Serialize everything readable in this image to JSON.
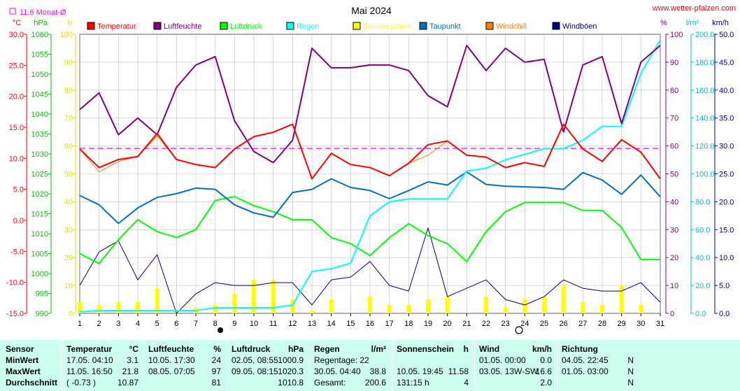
{
  "header": {
    "title": "Mai 2024",
    "website": "www.wetter-pfalzen.com",
    "avg_label": "11.6 Monat-Ø"
  },
  "units": {
    "temp": "°C",
    "press": "hPa",
    "sun": "h",
    "hum": "%",
    "rain": "l/m²",
    "wind": "km/h"
  },
  "legend": [
    {
      "label": "Temperatur",
      "color": "#ff0000"
    },
    {
      "label": "Luftfeuchte",
      "color": "#800080"
    },
    {
      "label": "Luftdruck",
      "color": "#00ff00"
    },
    {
      "label": "Regen",
      "color": "#00ffff"
    },
    {
      "label": "Sonnenschein",
      "color": "#ffff00"
    },
    {
      "label": "Taupunkt",
      "color": "#0070c0"
    },
    {
      "label": "Windchill",
      "color": "#ff8000"
    },
    {
      "label": "Windböen",
      "color": "#000080"
    }
  ],
  "chart_data": {
    "type": "line",
    "title": "Mai 2024",
    "x": [
      1,
      2,
      3,
      4,
      5,
      6,
      7,
      8,
      9,
      10,
      11,
      12,
      13,
      14,
      15,
      16,
      17,
      18,
      19,
      20,
      21,
      22,
      23,
      24,
      25,
      26,
      27,
      28,
      29,
      30,
      31
    ],
    "x_ticks": [
      "1",
      "2",
      "3",
      "4",
      "5",
      "6",
      "7",
      "8",
      "9",
      "10",
      "11",
      "12",
      "13",
      "14",
      "15",
      "16",
      "17",
      "18",
      "19",
      "20",
      "21",
      "22",
      "23",
      "24",
      "25",
      "26",
      "27",
      "28",
      "29",
      "30",
      "31"
    ],
    "axes": {
      "temp": {
        "label": "°C",
        "range": [
          -15,
          30
        ],
        "ticks": [
          "-15.0",
          "-10.0",
          "-5.0",
          "0.0",
          "5.0",
          "10.0",
          "15.0",
          "20.0",
          "25.0",
          "30.0"
        ]
      },
      "pressure": {
        "label": "hPa",
        "range": [
          990,
          1060
        ],
        "ticks": [
          "990",
          "995",
          "1000",
          "1005",
          "1010",
          "1015",
          "1020",
          "1025",
          "1030",
          "1035",
          "1040",
          "1045",
          "1050",
          "1055",
          "1060"
        ]
      },
      "sunshine": {
        "label": "h",
        "range": [
          0,
          100
        ],
        "ticks": [
          "0",
          "10",
          "20",
          "30",
          "40",
          "50",
          "60",
          "70",
          "80",
          "90",
          "100"
        ]
      },
      "humidity": {
        "label": "%",
        "range": [
          0,
          100
        ],
        "ticks": [
          "0",
          "10",
          "20",
          "30",
          "40",
          "50",
          "60",
          "70",
          "80",
          "90",
          "100"
        ]
      },
      "rain": {
        "label": "l/m²",
        "range": [
          0,
          200
        ],
        "ticks": [
          "0.0",
          "20.0",
          "40.0",
          "60.0",
          "80.0",
          "100.0",
          "120.0",
          "140.0",
          "160.0",
          "180.0",
          "200.0"
        ]
      },
      "wind": {
        "label": "km/h",
        "range": [
          0,
          50
        ],
        "ticks": [
          "0.0",
          "5.0",
          "10.0",
          "15.0",
          "20.0",
          "25.0",
          "30.0",
          "35.0",
          "40.0",
          "45.0",
          "50.0"
        ]
      }
    },
    "month_avg_temp": 11.6,
    "series": [
      {
        "name": "Temperatur",
        "axis": "temp",
        "color": "#ff0000",
        "values": [
          11.5,
          8.5,
          9.8,
          10.3,
          14.0,
          9.8,
          9.0,
          8.5,
          11.5,
          13.5,
          14.2,
          15.5,
          6.7,
          10.8,
          9.0,
          8.5,
          7.2,
          9.2,
          12.2,
          12.8,
          10.5,
          10.2,
          8.5,
          9.3,
          8.7,
          15.5,
          11.5,
          9.5,
          13.0,
          11.0,
          6.7
        ]
      },
      {
        "name": "Luftfeuchte",
        "axis": "humidity",
        "color": "#800080",
        "values": [
          73,
          79,
          64,
          70,
          64,
          81,
          89,
          92,
          69,
          58,
          54,
          62,
          95,
          88,
          88,
          89,
          89,
          87,
          78,
          74,
          96,
          87,
          95,
          90,
          91,
          65,
          89,
          92,
          68,
          90,
          96
        ]
      },
      {
        "name": "Luftdruck",
        "axis": "pressure",
        "color": "#00ff00",
        "values": [
          1005.0,
          1002.5,
          1008.5,
          1013.5,
          1010.5,
          1009.0,
          1011.0,
          1018.3,
          1019.3,
          1017.0,
          1015.5,
          1013.5,
          1013.5,
          1009.0,
          1007.5,
          1004.5,
          1009.0,
          1012.5,
          1009.5,
          1007.5,
          1003.0,
          1010.5,
          1015.5,
          1017.8,
          1017.8,
          1017.8,
          1015.8,
          1015.8,
          1011.5,
          1003.5,
          1003.5
        ]
      },
      {
        "name": "Regen",
        "axis": "rain",
        "color": "#00ffff",
        "values": [
          1,
          2,
          2,
          2,
          2,
          2,
          2,
          4,
          4,
          4,
          4,
          6,
          30,
          32,
          36,
          70,
          80,
          82,
          82,
          82,
          102,
          104,
          110,
          114,
          118,
          118,
          124,
          134,
          134,
          172,
          196
        ]
      },
      {
        "name": "Sonnenschein",
        "axis": "sunshine",
        "color": "#ffff00",
        "values": [
          4,
          3,
          4,
          4,
          9,
          1,
          2,
          3,
          7,
          12,
          12,
          5,
          1,
          5,
          0,
          6,
          3,
          3,
          5,
          6,
          0,
          6,
          2,
          5,
          6,
          10,
          4,
          3,
          10,
          3,
          0
        ]
      },
      {
        "name": "Taupunkt",
        "axis": "temp",
        "color": "#0070c0",
        "values": [
          4.0,
          2.5,
          -0.5,
          2.0,
          3.7,
          4.3,
          5.2,
          5.0,
          2.5,
          1.2,
          0.5,
          4.5,
          5.0,
          6.7,
          5.3,
          4.8,
          3.5,
          4.8,
          6.2,
          5.7,
          7.8,
          5.8,
          5.5,
          5.4,
          5.3,
          5.0,
          7.7,
          6.5,
          4.2,
          7.3,
          3.8
        ]
      },
      {
        "name": "Windchill",
        "axis": "temp",
        "color": "#ff8000",
        "values": [
          11.5,
          7.8,
          9.5,
          10.3,
          13.6,
          9.8,
          9.0,
          8.5,
          11.5,
          13.5,
          14.2,
          15.5,
          6.7,
          10.8,
          9.0,
          8.5,
          7.2,
          9.2,
          10.5,
          12.8,
          10.5,
          10.2,
          8.5,
          9.3,
          8.7,
          15.5,
          11.5,
          9.5,
          13.0,
          11.0,
          6.7
        ]
      },
      {
        "name": "Windböen",
        "axis": "wind",
        "color": "#000080",
        "values": [
          5.0,
          11.0,
          13.0,
          6.0,
          10.5,
          0.0,
          3.5,
          5.5,
          5.0,
          5.0,
          5.5,
          5.5,
          1.5,
          6.0,
          6.5,
          9.3,
          5.0,
          4.0,
          15.3,
          3.0,
          4.5,
          6.0,
          2.5,
          1.5,
          3.0,
          6.0,
          4.5,
          4.0,
          4.0,
          5.5,
          2.0
        ]
      }
    ]
  },
  "table": {
    "headers": {
      "sensor": "Sensor",
      "temp": "Temperatur",
      "temp_unit": "°C",
      "hum": "Luftfeuchte",
      "hum_unit": "%",
      "press": "Luftdruck",
      "press_unit": "hPa",
      "rain": "Regen",
      "rain_unit": "l/m²",
      "sun": "Sonnenschein",
      "sun_unit": "h",
      "wind": "Wind",
      "wind_unit": "km/h",
      "dir": "Richtung"
    },
    "rows": [
      {
        "label": "MinWert",
        "temp_date": "17.05.  04:10",
        "temp_val": "3.1",
        "hum_date": "10.05.  17:30",
        "hum_val": "24",
        "press_date": "02.05.  08:55",
        "press_val": "1000.9",
        "rain_date": "Regentage: 22",
        "rain_val": "",
        "sun_date": "",
        "sun_val": "",
        "wind_date": "01.05.  00:00",
        "wind_val": "0.0",
        "dir_date": "04.05.  22:45",
        "dir_val": "N"
      },
      {
        "label": "MaxWert",
        "temp_date": "11.05.  16:50",
        "temp_val": "21.8",
        "hum_date": "08.05.  07:05",
        "hum_val": "97",
        "press_date": "09.05.  08:15",
        "press_val": "1020.3",
        "rain_date": "30.05.  04:40",
        "rain_val": "38.8",
        "sun_date": "10.05.  19:45",
        "sun_val": "11.58",
        "wind_date": "03.05.  13W-SW",
        "wind_val": "16.6",
        "dir_date": "01.05.  03:00",
        "dir_val": "N"
      },
      {
        "label": "Durchschnitt",
        "temp_date": "( -0.73 )",
        "temp_val": "10.87",
        "hum_date": "",
        "hum_val": "81",
        "press_date": "",
        "press_val": "1010.8",
        "rain_date": "Gesamt:",
        "rain_val": "200.6",
        "sun_date": "131:15 h",
        "sun_val": "4",
        "wind_date": "",
        "wind_val": "2.0",
        "dir_date": "",
        "dir_val": "N"
      }
    ]
  }
}
